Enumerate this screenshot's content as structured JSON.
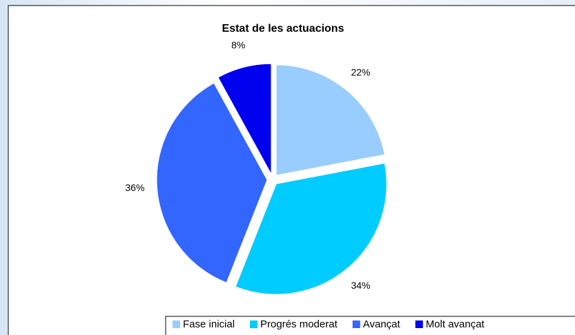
{
  "chart_data": {
    "type": "pie",
    "title": "Estat de les actuacions",
    "categories": [
      "Fase inicial",
      "Progrés moderat",
      "Avançat",
      "Molt avançat"
    ],
    "values": [
      22,
      34,
      36,
      8
    ],
    "value_labels": [
      "22%",
      "34%",
      "36%",
      "8%"
    ],
    "colors": [
      "#99ccff",
      "#00ccff",
      "#3366ff",
      "#0000ee"
    ],
    "legend": "bottom"
  }
}
